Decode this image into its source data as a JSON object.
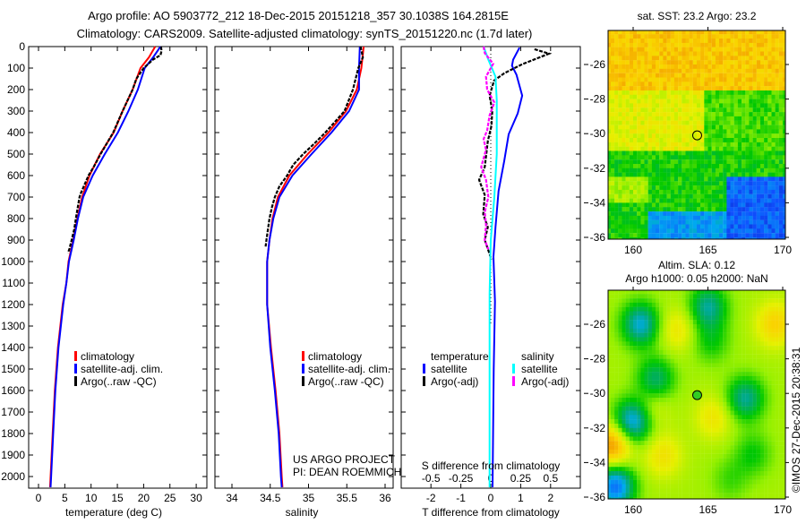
{
  "title": {
    "line1": "Argo profile: AO 5903772_212 18-Dec-2015 20151218_357 30.1038S 164.2815E",
    "line2": "Climatology: CARS2009. Satellite-adjusted climatology: synTS_20151220.nc (1.7d later)"
  },
  "credits": {
    "project": "US ARGO PROJECT",
    "pi": "PI: DEAN ROEMMICH",
    "stamp": "©IMOS 27-Dec-2015 20:38:31"
  },
  "colors": {
    "climatology": "#ff0000",
    "satellite": "#0000ff",
    "argo": "#000000",
    "sal_satellite": "#00ffff",
    "sal_argo": "#ff00ff"
  },
  "chart_data": [
    {
      "type": "line",
      "id": "temperature",
      "xlabel": "temperature (deg C)",
      "ylabel": "",
      "xlim": [
        -2,
        32
      ],
      "ylim": [
        2050,
        0
      ],
      "xticks": [
        "0",
        "5",
        "10",
        "15",
        "20",
        "25",
        "30"
      ],
      "yticks": [
        "0",
        "100",
        "200",
        "300",
        "400",
        "500",
        "600",
        "700",
        "800",
        "900",
        "1000",
        "1100",
        "1200",
        "1300",
        "1400",
        "1500",
        "1600",
        "1700",
        "1800",
        "1900",
        "2000"
      ],
      "legend": [
        "climatology",
        "satellite-adj. clim.",
        "Argo(..raw -QC)"
      ],
      "series": [
        {
          "name": "climatology",
          "depth": [
            0,
            50,
            100,
            200,
            300,
            400,
            500,
            600,
            700,
            800,
            900,
            1000,
            1100,
            1200,
            1400,
            1600,
            1800,
            2000,
            2050
          ],
          "values": [
            22.2,
            21.0,
            19.4,
            17.9,
            16.0,
            14.3,
            11.7,
            9.7,
            8.3,
            7.4,
            6.6,
            5.7,
            5.3,
            4.6,
            3.7,
            3.1,
            2.7,
            2.3,
            2.2
          ]
        },
        {
          "name": "satellite-adj. clim.",
          "depth": [
            0,
            50,
            100,
            200,
            300,
            400,
            500,
            600,
            700,
            800,
            900,
            1000,
            1100,
            1200,
            1400,
            1600,
            1800,
            2000,
            2050
          ],
          "values": [
            23.2,
            21.8,
            20.2,
            18.9,
            17.1,
            15.1,
            12.6,
            10.3,
            8.5,
            7.5,
            6.7,
            5.8,
            5.3,
            4.7,
            3.8,
            3.2,
            2.8,
            2.4,
            2.3
          ]
        },
        {
          "name": "Argo(..raw -QC)",
          "depth": [
            0,
            20,
            40,
            60,
            100,
            150,
            200,
            300,
            400,
            500,
            560,
            600,
            680,
            700,
            800,
            850,
            900,
            940,
            960
          ],
          "values": [
            23.3,
            23.4,
            23.2,
            21.8,
            20.0,
            18.6,
            17.9,
            16.0,
            14.2,
            11.8,
            10.5,
            9.5,
            8.1,
            7.8,
            7.1,
            6.8,
            6.3,
            5.9,
            5.6
          ]
        }
      ]
    },
    {
      "type": "line",
      "id": "salinity",
      "xlabel": "salinity",
      "xlim": [
        33.8,
        36.1
      ],
      "ylim": [
        2050,
        0
      ],
      "xticks": [
        "34",
        "34.5",
        "35",
        "35.5",
        "36"
      ],
      "legend": [
        "climatology",
        "satellite-adj. clim.",
        "Argo(..raw -QC)"
      ],
      "series": [
        {
          "name": "climatology",
          "depth": [
            0,
            100,
            200,
            300,
            400,
            500,
            600,
            700,
            800,
            900,
            1000,
            1200,
            1400,
            1600,
            1800,
            2000,
            2050
          ],
          "values": [
            35.72,
            35.69,
            35.63,
            35.49,
            35.26,
            34.99,
            34.75,
            34.6,
            34.53,
            34.49,
            34.46,
            34.46,
            34.51,
            34.57,
            34.62,
            34.65,
            34.66
          ]
        },
        {
          "name": "satellite-adj. clim.",
          "depth": [
            0,
            100,
            200,
            300,
            400,
            500,
            600,
            700,
            800,
            900,
            1000,
            1200,
            1400,
            1600,
            1800,
            2000,
            2050
          ],
          "values": [
            35.67,
            35.66,
            35.66,
            35.53,
            35.3,
            35.04,
            34.79,
            34.62,
            34.54,
            34.49,
            34.46,
            34.46,
            34.5,
            34.56,
            34.61,
            34.64,
            34.65
          ]
        },
        {
          "name": "Argo(..raw -QC)",
          "depth": [
            0,
            50,
            100,
            200,
            300,
            400,
            450,
            500,
            550,
            600,
            650,
            700,
            750,
            800,
            850,
            900,
            930
          ],
          "values": [
            35.68,
            35.71,
            35.65,
            35.58,
            35.47,
            35.22,
            35.08,
            34.93,
            34.8,
            34.72,
            34.62,
            34.56,
            34.52,
            34.49,
            34.47,
            34.45,
            34.44
          ]
        }
      ]
    },
    {
      "type": "line",
      "id": "differences",
      "xlabel": "T difference from climatology",
      "x2label": "S difference from climatology",
      "xlim": [
        -3,
        3
      ],
      "x2lim": [
        -0.75,
        0.75
      ],
      "ylim": [
        2050,
        0
      ],
      "xticks": [
        "-2",
        "-1",
        "0",
        "1",
        "2"
      ],
      "x2ticks": [
        "-0.5",
        "-0.25",
        "0",
        "0.25",
        "0.5"
      ],
      "legend_headers": [
        "temperature",
        "salinity"
      ],
      "legend": [
        "satellite",
        "Argo(-adj)",
        "satellite",
        "Argo(-adj)"
      ],
      "series": [
        {
          "name": "T satellite",
          "axis": "T",
          "depth": [
            5,
            61,
            89,
            131,
            228,
            311,
            408,
            533,
            672,
            839,
            978,
            1186,
            1500,
            2050
          ],
          "values": [
            0.96,
            0.75,
            0.71,
            0.86,
            1.05,
            0.9,
            0.6,
            0.45,
            0.26,
            0.16,
            0.09,
            0.14,
            0.1,
            0.06
          ]
        },
        {
          "name": "T Argo(-adj)",
          "axis": "T",
          "depth": [
            12,
            33,
            54,
            82,
            124,
            158,
            228,
            300,
            370,
            440,
            560,
            620,
            690,
            780,
            840,
            900,
            960,
            990
          ],
          "values": [
            1.46,
            1.95,
            1.56,
            1.05,
            0.45,
            0.11,
            -0.04,
            0.05,
            0.02,
            -0.1,
            -0.2,
            -0.39,
            -0.2,
            -0.25,
            -0.1,
            -0.2,
            -0.05,
            0.02
          ]
        },
        {
          "name": "S satellite",
          "axis": "S",
          "depth": [
            0,
            61,
            140,
            250,
            500,
            700,
            900,
            1150,
            1500,
            2050
          ],
          "values": [
            -0.06,
            -0.02,
            0.04,
            0.05,
            0.05,
            0.03,
            0.0,
            -0.01,
            -0.01,
            -0.01
          ]
        },
        {
          "name": "S Argo(-adj)",
          "axis": "S",
          "depth": [
            0,
            30,
            80,
            140,
            200,
            260,
            320,
            390,
            430,
            480,
            560,
            620,
            700,
            770,
            830,
            900,
            943
          ],
          "values": [
            -0.06,
            -0.05,
            0.02,
            -0.04,
            -0.03,
            0.03,
            -0.01,
            -0.03,
            -0.06,
            -0.04,
            -0.08,
            -0.04,
            -0.02,
            -0.05,
            -0.04,
            -0.05,
            -0.02
          ]
        }
      ]
    }
  ],
  "maps": [
    {
      "id": "sst",
      "title": "sat. SST: 23.2 Argo: 23.2",
      "lon_ticks": [
        "160",
        "165",
        "170"
      ],
      "lat_ticks": [
        "-26",
        "-28",
        "-30",
        "-32",
        "-34",
        "-36"
      ],
      "argo_lon": 164.28,
      "argo_lat": -30.1
    },
    {
      "id": "sla",
      "title": "Altim. SLA: 0.12",
      "subtitle": "Argo h1000: 0.05 h2000: NaN",
      "lon_ticks": [
        "160",
        "165",
        "170"
      ],
      "lat_ticks": [
        "-26",
        "-28",
        "-30",
        "-32",
        "-34",
        "-36"
      ],
      "argo_lon": 164.28,
      "argo_lat": -30.1
    }
  ]
}
